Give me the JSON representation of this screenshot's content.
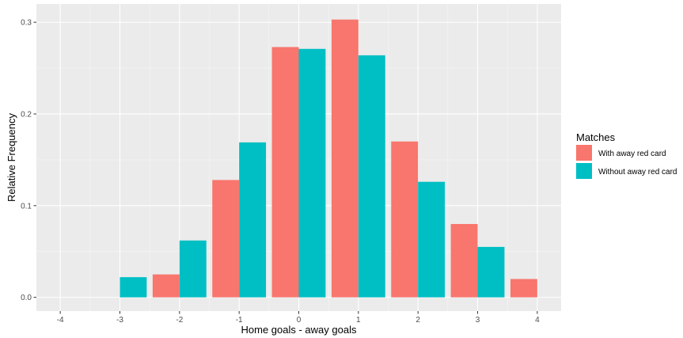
{
  "chart_data": {
    "type": "bar",
    "xlabel": "Home goals - away goals",
    "ylabel": "Relative Frequency",
    "categories": [
      -4,
      -3,
      -2,
      -1,
      0,
      1,
      2,
      3,
      4
    ],
    "x_tick_labels": [
      "-4",
      "-3",
      "-2",
      "-1",
      "0",
      "1",
      "2",
      "3",
      "4"
    ],
    "y_ticks": [
      0.0,
      0.1,
      0.2,
      0.3
    ],
    "y_tick_labels": [
      "0.0",
      "0.1",
      "0.2",
      "0.3"
    ],
    "xlim": [
      -4.4,
      4.4
    ],
    "ylim": [
      -0.015,
      0.32
    ],
    "grid": true,
    "legend_position": "right",
    "legend_title": "Matches",
    "series": [
      {
        "name": "With away red card",
        "color": "#F8766D",
        "values": [
          0,
          0,
          0.025,
          0.128,
          0.273,
          0.303,
          0.17,
          0.08,
          0.02
        ]
      },
      {
        "name": "Without away red card",
        "color": "#00BFC4",
        "values": [
          0,
          0.022,
          0.062,
          0.169,
          0.271,
          0.264,
          0.126,
          0.055,
          0
        ]
      }
    ],
    "colors": {
      "panel_background": "#EBEBEB",
      "grid_major": "#FFFFFF",
      "grid_minor": "#F5F5F5"
    }
  }
}
